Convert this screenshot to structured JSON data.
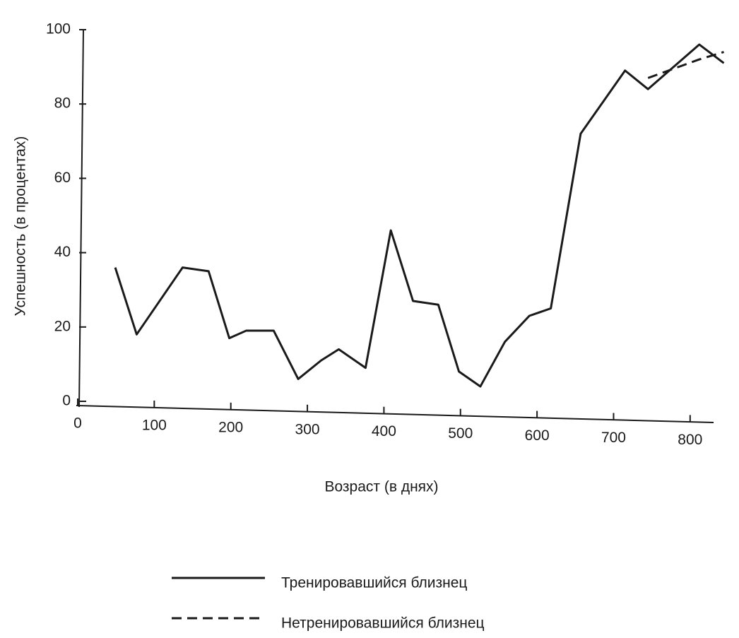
{
  "chart_data": {
    "type": "line",
    "x_label": "Возраст (в днях)",
    "y_label": "Успешность (в процентах)",
    "x": [
      49,
      77,
      137,
      171,
      198,
      220,
      256,
      288,
      318,
      341,
      376,
      409,
      438,
      471,
      498,
      526,
      558,
      590,
      618,
      657,
      715,
      745,
      812,
      844
    ],
    "series": [
      {
        "name": "Тренировавшийся близнец",
        "color": "#1a1a1a",
        "line_style": "solid",
        "values": [
          36,
          18,
          36,
          35,
          17,
          19,
          19,
          6,
          11,
          14,
          9,
          46,
          27,
          26,
          8,
          4,
          16,
          23,
          25,
          72,
          89,
          84,
          96,
          91
        ]
      },
      {
        "name": "Нетренировавшийся близнец",
        "color": "#1a1a1a",
        "line_style": "dashed",
        "values": [
          null,
          null,
          null,
          null,
          null,
          null,
          null,
          null,
          null,
          null,
          null,
          null,
          null,
          null,
          null,
          null,
          null,
          null,
          null,
          null,
          null,
          87,
          92,
          94
        ]
      }
    ],
    "xlim": [
      0,
      850
    ],
    "ylim": [
      0,
      100
    ],
    "xticks": [
      0,
      100,
      200,
      300,
      400,
      500,
      600,
      700,
      800
    ],
    "yticks": [
      0,
      20,
      40,
      60,
      80,
      100
    ],
    "grid": false
  }
}
